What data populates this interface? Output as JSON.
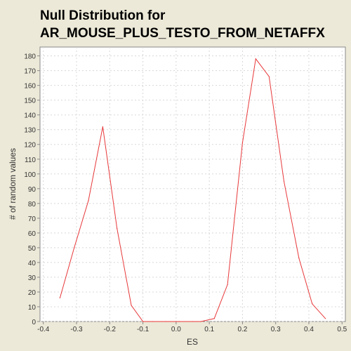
{
  "title_lines": [
    "Null Distribution for",
    "AR_MOUSE_PLUS_TESTO_FROM_NETAFFX"
  ],
  "colors": {
    "background": "#ECE9D8",
    "plot_background": "#FFFFFF",
    "line": "#E8383A",
    "grid": "#D8D8D8",
    "axis": "#888888"
  },
  "chart_data": {
    "type": "line",
    "xlabel": "ES",
    "ylabel": "# of random values",
    "xlim": [
      -0.41,
      0.51
    ],
    "ylim": [
      0,
      186
    ],
    "xticks": [
      -0.4,
      -0.3,
      -0.2,
      -0.1,
      0.0,
      0.1,
      0.2,
      0.3,
      0.4,
      0.5
    ],
    "xtick_labels": [
      "-0.4",
      "-0.3",
      "-0.2",
      "-0.1",
      "0.0",
      "0.1",
      "0.2",
      "0.3",
      "0.4",
      "0.5"
    ],
    "yticks": [
      0,
      10,
      20,
      30,
      40,
      50,
      60,
      70,
      80,
      90,
      100,
      110,
      120,
      130,
      140,
      150,
      160,
      170,
      180
    ],
    "grid": true,
    "series": [
      {
        "x": [
          -0.35,
          -0.307,
          -0.264,
          -0.221,
          -0.178,
          -0.135,
          -0.1,
          -0.07,
          -0.03,
          0.01,
          0.05,
          0.075,
          0.115,
          0.155,
          0.2,
          0.24,
          0.28,
          0.325,
          0.37,
          0.41,
          0.45
        ],
        "y": [
          16,
          50,
          82,
          132,
          63,
          11,
          0,
          0,
          0,
          0,
          0,
          0,
          2,
          25,
          121,
          178,
          166,
          95,
          43,
          12,
          2
        ]
      }
    ]
  }
}
